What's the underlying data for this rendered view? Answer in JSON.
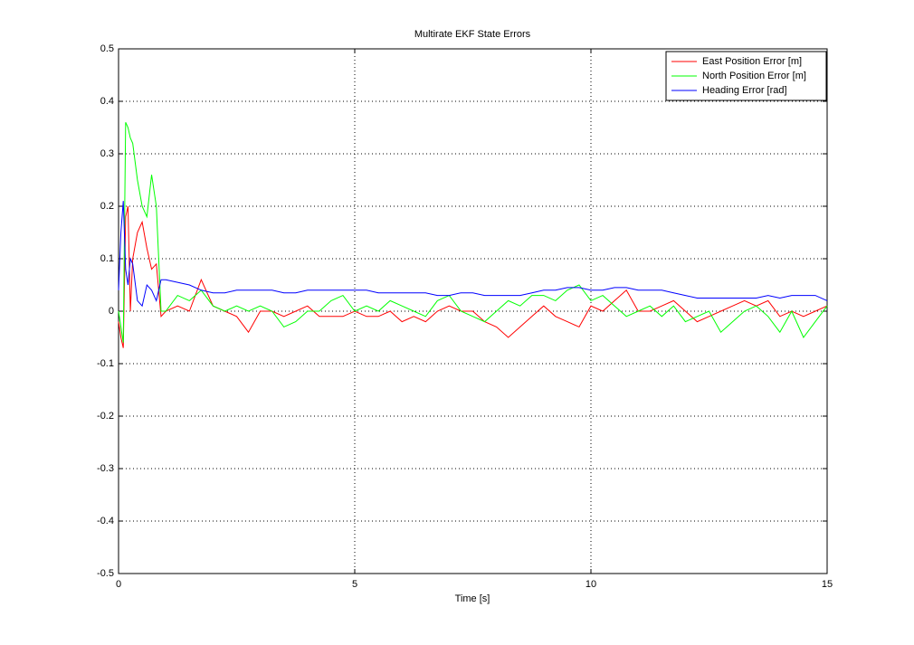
{
  "chart_data": {
    "type": "line",
    "title": "Multirate EKF State Errors",
    "xlabel": "Time [s]",
    "x": [
      0,
      0.05,
      0.1,
      0.15,
      0.2,
      0.25,
      0.3,
      0.4,
      0.5,
      0.6,
      0.7,
      0.8,
      0.9,
      1.0,
      1.25,
      1.5,
      1.75,
      2.0,
      2.25,
      2.5,
      2.75,
      3.0,
      3.25,
      3.5,
      3.75,
      4.0,
      4.25,
      4.5,
      4.75,
      5.0,
      5.25,
      5.5,
      5.75,
      6.0,
      6.25,
      6.5,
      6.75,
      7.0,
      7.25,
      7.5,
      7.75,
      8.0,
      8.25,
      8.5,
      8.75,
      9.0,
      9.25,
      9.5,
      9.75,
      10.0,
      10.25,
      10.5,
      10.75,
      11.0,
      11.25,
      11.5,
      11.75,
      12.0,
      12.25,
      12.5,
      12.75,
      13.0,
      13.25,
      13.5,
      13.75,
      14.0,
      14.25,
      14.5,
      14.75,
      15.0
    ],
    "series": [
      {
        "name": "East Position Error [m]",
        "color": "#ff0000",
        "values": [
          -0.02,
          -0.05,
          -0.07,
          0.18,
          0.2,
          0.0,
          0.1,
          0.15,
          0.17,
          0.12,
          0.08,
          0.09,
          -0.01,
          0.0,
          0.01,
          0.0,
          0.06,
          0.01,
          0.0,
          -0.01,
          -0.04,
          0.0,
          0.0,
          -0.01,
          0.0,
          0.01,
          -0.01,
          -0.01,
          -0.01,
          0.0,
          -0.01,
          -0.01,
          0.0,
          -0.02,
          -0.01,
          -0.02,
          0.0,
          0.01,
          0.0,
          0.0,
          -0.02,
          -0.03,
          -0.05,
          -0.03,
          -0.01,
          0.01,
          -0.01,
          -0.02,
          -0.03,
          0.01,
          0.0,
          0.02,
          0.04,
          0.0,
          0.0,
          0.01,
          0.02,
          0.0,
          -0.02,
          -0.01,
          0.0,
          0.01,
          0.02,
          0.01,
          0.02,
          -0.01,
          0.0,
          -0.01,
          0.0,
          0.01
        ]
      },
      {
        "name": "North Position Error [m]",
        "color": "#00ff00",
        "values": [
          0.0,
          -0.03,
          -0.06,
          0.36,
          0.35,
          0.33,
          0.32,
          0.25,
          0.2,
          0.18,
          0.26,
          0.2,
          0.0,
          0.0,
          0.03,
          0.02,
          0.04,
          0.01,
          0.0,
          0.01,
          0.0,
          0.01,
          0.0,
          -0.03,
          -0.02,
          0.0,
          0.0,
          0.02,
          0.03,
          0.0,
          0.01,
          0.0,
          0.02,
          0.01,
          0.0,
          -0.01,
          0.02,
          0.03,
          0.0,
          -0.01,
          -0.02,
          0.0,
          0.02,
          0.01,
          0.03,
          0.03,
          0.02,
          0.04,
          0.05,
          0.02,
          0.03,
          0.01,
          -0.01,
          0.0,
          0.01,
          -0.01,
          0.01,
          -0.02,
          -0.01,
          0.0,
          -0.04,
          -0.02,
          0.0,
          0.01,
          -0.01,
          -0.04,
          0.0,
          -0.05,
          -0.02,
          0.01
        ]
      },
      {
        "name": "Heading Error [rad]",
        "color": "#0000ff",
        "values": [
          0.04,
          0.15,
          0.21,
          0.08,
          0.05,
          0.1,
          0.09,
          0.02,
          0.01,
          0.05,
          0.04,
          0.02,
          0.06,
          0.06,
          0.055,
          0.05,
          0.04,
          0.035,
          0.035,
          0.04,
          0.04,
          0.04,
          0.04,
          0.035,
          0.035,
          0.04,
          0.04,
          0.04,
          0.04,
          0.04,
          0.04,
          0.035,
          0.035,
          0.035,
          0.035,
          0.035,
          0.03,
          0.03,
          0.035,
          0.035,
          0.03,
          0.03,
          0.03,
          0.03,
          0.035,
          0.04,
          0.04,
          0.045,
          0.045,
          0.04,
          0.04,
          0.045,
          0.045,
          0.04,
          0.04,
          0.04,
          0.035,
          0.03,
          0.025,
          0.025,
          0.025,
          0.025,
          0.025,
          0.025,
          0.03,
          0.025,
          0.03,
          0.03,
          0.03,
          0.02
        ]
      }
    ],
    "xlim": [
      0,
      15
    ],
    "xticks": [
      0,
      5,
      10,
      15
    ],
    "ylim": [
      -0.5,
      0.5
    ],
    "yticks": [
      -0.5,
      -0.4,
      -0.3,
      -0.2,
      -0.1,
      0,
      0.1,
      0.2,
      0.3,
      0.4,
      0.5
    ],
    "grid": true,
    "legend": "northeast"
  }
}
